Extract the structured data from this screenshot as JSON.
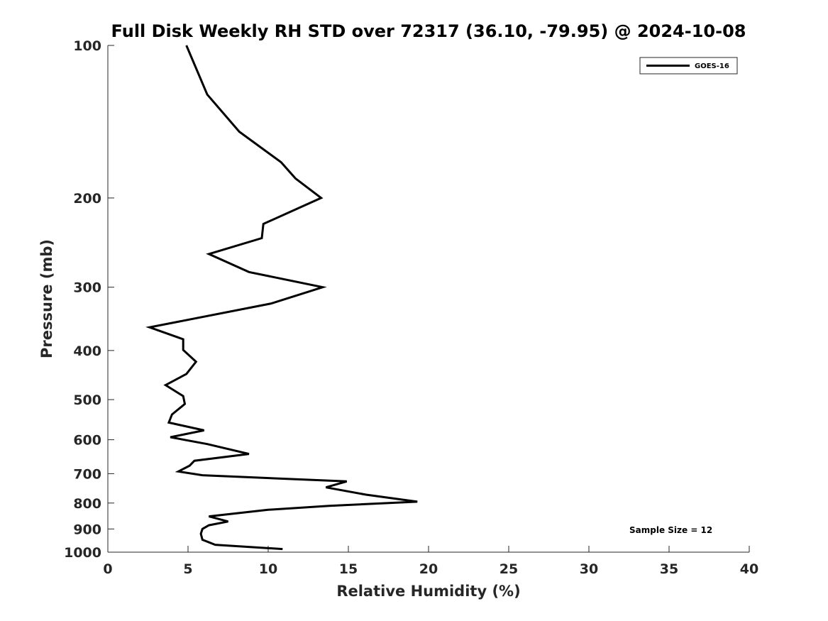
{
  "chart_data": {
    "type": "line",
    "title": "Full Disk Weekly RH STD over 72317 (36.10, -79.95) @ 2024-10-08",
    "xlabel": "Relative Humidity (%)",
    "ylabel": "Pressure (mb)",
    "xlim": [
      0,
      40
    ],
    "ylim": [
      100,
      1000
    ],
    "yscale": "log",
    "y_reversed": true,
    "xticks": [
      0,
      5,
      10,
      15,
      20,
      25,
      30,
      35,
      40
    ],
    "yticks": [
      100,
      200,
      300,
      400,
      500,
      600,
      700,
      800,
      900,
      1000
    ],
    "legend": {
      "location": "top-right",
      "entries": [
        "GOES-16"
      ]
    },
    "annotation": "Sample Size = 12",
    "series": [
      {
        "name": "GOES-16",
        "color": "#000000",
        "points": [
          [
            4.9,
            100
          ],
          [
            6.2,
            125
          ],
          [
            8.2,
            148
          ],
          [
            10.8,
            170
          ],
          [
            11.7,
            183
          ],
          [
            13.3,
            200
          ],
          [
            9.7,
            225
          ],
          [
            9.6,
            240
          ],
          [
            6.3,
            258
          ],
          [
            8.8,
            280
          ],
          [
            13.4,
            300
          ],
          [
            10.2,
            323
          ],
          [
            2.6,
            360
          ],
          [
            4.7,
            380
          ],
          [
            4.7,
            399
          ],
          [
            5.5,
            421
          ],
          [
            4.9,
            445
          ],
          [
            3.6,
            468
          ],
          [
            4.7,
            492
          ],
          [
            4.8,
            510
          ],
          [
            4.0,
            535
          ],
          [
            3.8,
            555
          ],
          [
            6.0,
            575
          ],
          [
            3.9,
            593
          ],
          [
            6.2,
            612
          ],
          [
            8.8,
            640
          ],
          [
            5.4,
            660
          ],
          [
            5.1,
            675
          ],
          [
            4.4,
            693
          ],
          [
            5.9,
            705
          ],
          [
            14.9,
            725
          ],
          [
            13.6,
            745
          ],
          [
            16.1,
            770
          ],
          [
            19.3,
            795
          ],
          [
            13.8,
            810
          ],
          [
            10.0,
            825
          ],
          [
            6.3,
            850
          ],
          [
            7.5,
            870
          ],
          [
            6.3,
            885
          ],
          [
            5.9,
            900
          ],
          [
            5.8,
            920
          ],
          [
            5.9,
            945
          ],
          [
            6.7,
            967
          ],
          [
            10.9,
            986
          ]
        ]
      }
    ]
  }
}
